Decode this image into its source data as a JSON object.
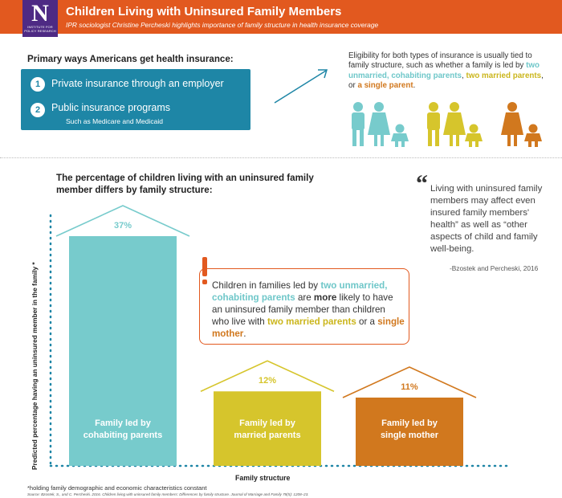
{
  "header": {
    "logo_letter": "N",
    "logo_text_line1": "INSTITUTE FOR",
    "logo_text_line2": "POLICY RESEARCH",
    "title": "Children Living with Uninsured Family Members",
    "subtitle": "IPR sociologist Christine Percheski highlights importance of family structure in health insurance coverage"
  },
  "primary": {
    "heading": "Primary ways Americans get health insurance:",
    "items": [
      {
        "num": "1",
        "label": "Private insurance through an employer"
      },
      {
        "num": "2",
        "label": "Public insurance programs",
        "sub": "Such as Medicare and Medicaid"
      }
    ]
  },
  "eligibility": {
    "text_1": "Eligibility for both types of insurance is usually tied to family structure, such as whether a family is led by ",
    "hl_cohabiting": "two unmarried, cohabiting parents",
    "text_2": ", ",
    "hl_married": "two married parents",
    "text_3": ", or ",
    "hl_single": "a single parent",
    "text_4": "."
  },
  "chart_heading": "The percentage of children living with an uninsured family member differs by family structure:",
  "quote": {
    "mark": "“",
    "text": "Living with uninsured family members may affect even insured family members' health” as well as “other aspects of child and family well-being.",
    "cite": "-Bzostek and Percheski, 2016"
  },
  "callout": {
    "exclaim": "!",
    "t1": "Children in families led by ",
    "hl1": "two unmarried, cohabiting parents",
    "t2": " are ",
    "hl2": "more",
    "t3": " likely to have an uninsured family member than children who live with ",
    "hl3": "two married parents",
    "t4": " or a ",
    "hl4": "single mother",
    "t5": "."
  },
  "colors": {
    "header": "#e2591f",
    "logo": "#4e2a84",
    "ways_box": "#1e86a6",
    "teal": "#77cbcc",
    "yellow": "#d6c52c",
    "orange": "#d1781e"
  },
  "chart_data": {
    "type": "bar",
    "categories": [
      "Family led by cohabiting parents",
      "Family led by married parents",
      "Family led by single mother"
    ],
    "category_lines": [
      [
        "Family led by",
        "cohabiting parents"
      ],
      [
        "Family led by",
        "married parents"
      ],
      [
        "Family led by",
        "single mother"
      ]
    ],
    "values": [
      37,
      12,
      11
    ],
    "value_labels": [
      "37%",
      "12%",
      "11%"
    ],
    "colors": [
      "#77cbcc",
      "#d6c52c",
      "#d1781e"
    ],
    "xlabel": "Family structure",
    "ylabel": "Predicted percentage having an uninsured member in the family *",
    "ylim": [
      0,
      37
    ]
  },
  "footnote": "*holding family demographic and economic characteristics constant",
  "source": "Source: Bzostek, S., and C. Percheski. 2016. Children living with uninsured family members: Differences by family structure. Journal of Marriage and Family 78(5): 1208–23."
}
